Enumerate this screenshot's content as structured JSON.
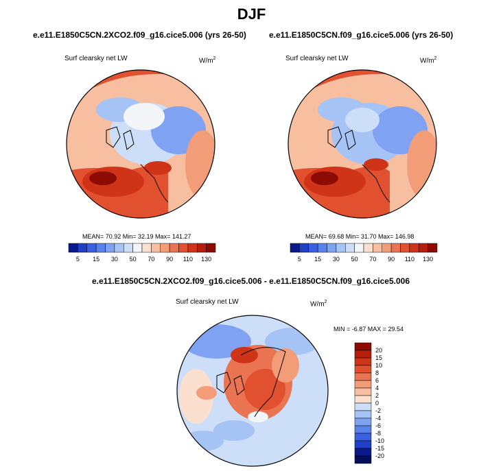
{
  "page_title": "DJF",
  "chart_data": [
    {
      "type": "heatmap",
      "projection": "polar stereographic (north)",
      "title": "e.e11.E1850C5CN.2XCO2.f09_g16.cice5.006 (yrs 26-50)",
      "variable": "Surf clearsky net LW",
      "units": "W/m",
      "units_sup": "2",
      "stats": {
        "label": "MEAN=  70.92  Min=  32.19  Max= 141.27",
        "mean": 70.92,
        "min": 32.19,
        "max": 141.27
      },
      "colorbar": {
        "orientation": "horizontal",
        "tick_labels": [
          "5",
          "15",
          "30",
          "50",
          "70",
          "90",
          "110",
          "130"
        ],
        "levels": [
          0,
          5,
          10,
          15,
          20,
          30,
          40,
          50,
          60,
          70,
          80,
          90,
          100,
          110,
          120,
          130
        ],
        "colors": [
          "#0a1a8c",
          "#1f3fc4",
          "#3a5fe0",
          "#5a82ec",
          "#7fa3f2",
          "#a6c3f5",
          "#cddff8",
          "#f3f5f9",
          "#fbe0cf",
          "#f7bfa0",
          "#f29c78",
          "#ea7452",
          "#e1502f",
          "#cf3318",
          "#b51e0c",
          "#8c0c04"
        ]
      }
    },
    {
      "type": "heatmap",
      "projection": "polar stereographic (north)",
      "title": "e.e11.E1850C5CN.f09_g16.cice5.006 (yrs 26-50)",
      "variable": "Surf clearsky net LW",
      "units": "W/m",
      "units_sup": "2",
      "stats": {
        "label": "MEAN=  69.68  Min=  31.70  Max= 146.98",
        "mean": 69.68,
        "min": 31.7,
        "max": 146.98
      },
      "colorbar": {
        "orientation": "horizontal",
        "tick_labels": [
          "5",
          "15",
          "30",
          "50",
          "70",
          "90",
          "110",
          "130"
        ],
        "levels": [
          0,
          5,
          10,
          15,
          20,
          30,
          40,
          50,
          60,
          70,
          80,
          90,
          100,
          110,
          120,
          130
        ],
        "colors": [
          "#0a1a8c",
          "#1f3fc4",
          "#3a5fe0",
          "#5a82ec",
          "#7fa3f2",
          "#a6c3f5",
          "#cddff8",
          "#f3f5f9",
          "#fbe0cf",
          "#f7bfa0",
          "#f29c78",
          "#ea7452",
          "#e1502f",
          "#cf3318",
          "#b51e0c",
          "#8c0c04"
        ]
      }
    },
    {
      "type": "heatmap",
      "projection": "polar stereographic (north)",
      "title": "e.e11.E1850C5CN.2XCO2.f09_g16.cice5.006 - e.e11.E1850C5CN.f09_g16.cice5.006",
      "variable": "Surf clearsky net LW",
      "units": "W/m",
      "units_sup": "2",
      "stats": {
        "label": "MIN =  -6.87 MAX =  29.54",
        "min": -6.87,
        "max": 29.54
      },
      "colorbar": {
        "orientation": "vertical",
        "tick_labels": [
          "20",
          "15",
          "10",
          "8",
          "6",
          "4",
          "2",
          "0",
          "-2",
          "-4",
          "-6",
          "-8",
          "-10",
          "-15",
          "-20"
        ],
        "colors": [
          "#8c0c04",
          "#b51e0c",
          "#cf3318",
          "#e1502f",
          "#ea7452",
          "#f29c78",
          "#f7bfa0",
          "#fbe0cf",
          "#cddff8",
          "#a6c3f5",
          "#7fa3f2",
          "#5a82ec",
          "#3a5fe0",
          "#1f3fc4",
          "#0a1a8c",
          "#060f5c"
        ]
      }
    }
  ]
}
